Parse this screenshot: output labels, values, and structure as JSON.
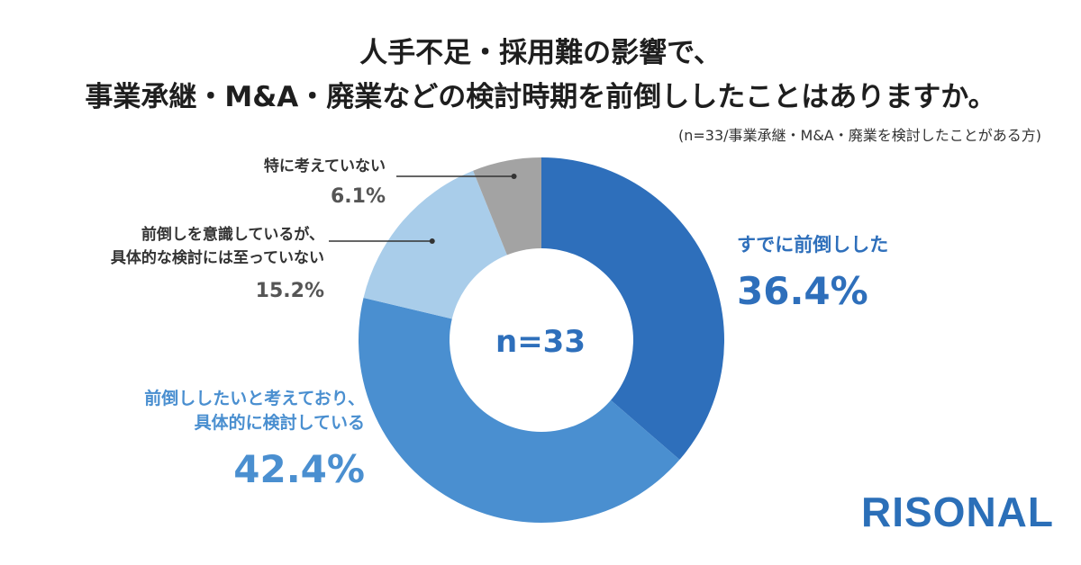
{
  "title_line1": "人手不足・採用難の影響で、",
  "title_line2": "事業承継・M&A・廃業などの検討時期を前倒ししたことはありますか。",
  "note": "(n=33/事業承継・M&A・廃業を検討したことがある方)",
  "center_label": "n=33",
  "logo": "RISONAL",
  "colors": {
    "already": "#2e6fbb",
    "want": "#4a8fd0",
    "conscious": "#a9cdea",
    "not_thinking": "#a3a3a3"
  },
  "chart_data": {
    "type": "pie",
    "donut": true,
    "n": 33,
    "title": "人手不足・採用難の影響で、事業承継・M&A・廃業などの検討時期を前倒ししたことはありますか。",
    "slices": [
      {
        "lines": [
          "すでに前倒しした"
        ],
        "value": 36.4,
        "label": "36.4%",
        "color": "#2e6fbb"
      },
      {
        "lines": [
          "前倒ししたいと考えており、",
          "具体的に検討している"
        ],
        "value": 42.4,
        "label": "42.4%",
        "color": "#4a8fd0"
      },
      {
        "lines": [
          "前倒しを意識しているが、",
          "具体的な検討には至っていない"
        ],
        "value": 15.2,
        "label": "15.2%",
        "color": "#a9cdea"
      },
      {
        "lines": [
          "特に考えていない"
        ],
        "value": 6.1,
        "label": "6.1%",
        "color": "#a3a3a3"
      }
    ]
  }
}
